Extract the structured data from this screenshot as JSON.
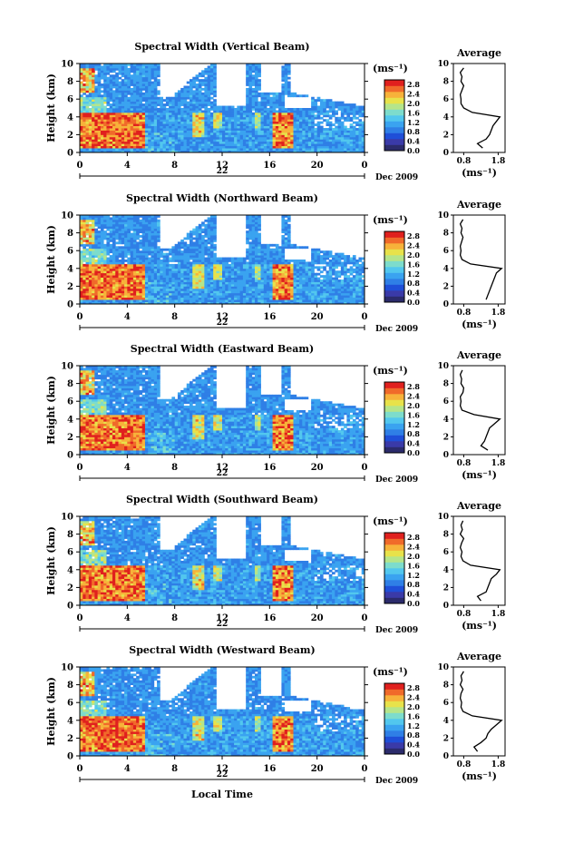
{
  "figure": {
    "xlabel": "Local Time",
    "date_label": "Dec 2009",
    "day_label": "22"
  },
  "colors": {
    "scale": [
      "#2b2b6b",
      "#3a3aa8",
      "#1f4fd8",
      "#2f7fe6",
      "#3aa3f0",
      "#52c7ee",
      "#7ddccc",
      "#b5e58a",
      "#e8e24a",
      "#f7b23a",
      "#f06a2a",
      "#e0201e"
    ],
    "missing": "#ffffff"
  },
  "chart_data": [
    {
      "type": "heatmap",
      "title": "Spectral Width (Vertical Beam)",
      "ylabel": "Height (km)",
      "x_ticks": [
        "0",
        "4",
        "8",
        "12",
        "16",
        "20",
        "0"
      ],
      "y_ticks": [
        "0",
        "2",
        "4",
        "6",
        "8",
        "10"
      ],
      "xlim": [
        0,
        24
      ],
      "ylim": [
        0,
        10
      ],
      "colorbar": {
        "unit": "(ms⁻¹)",
        "ticks": [
          "0.0",
          "0.4",
          "0.8",
          "1.2",
          "1.6",
          "2.0",
          "2.4",
          "2.8"
        ],
        "range": [
          0,
          3.0
        ]
      },
      "profile": {
        "title": "Average",
        "xlabel": "(ms⁻¹)",
        "x_ticks": [
          "0.8",
          "1.8"
        ],
        "xlim": [
          0.5,
          2.0
        ],
        "y_ticks": [
          "0",
          "2",
          "4",
          "6",
          "8",
          "10"
        ],
        "heights": [
          0.5,
          1.0,
          1.5,
          2.0,
          2.5,
          3.0,
          3.5,
          4.0,
          4.5,
          5.0,
          5.5,
          6.0,
          6.5,
          7.0,
          7.5,
          8.0,
          8.5,
          9.0,
          9.5
        ],
        "values": [
          1.35,
          1.2,
          1.45,
          1.55,
          1.6,
          1.65,
          1.75,
          1.85,
          1.05,
          0.8,
          0.72,
          0.72,
          0.7,
          0.75,
          0.8,
          0.72,
          0.75,
          0.7,
          0.8
        ]
      }
    },
    {
      "type": "heatmap",
      "title": "Spectral Width (Northward Beam)",
      "ylabel": "Height (km)",
      "x_ticks": [
        "0",
        "4",
        "8",
        "12",
        "16",
        "20",
        "0"
      ],
      "y_ticks": [
        "0",
        "2",
        "4",
        "6",
        "8",
        "10"
      ],
      "xlim": [
        0,
        24
      ],
      "ylim": [
        0,
        10
      ],
      "colorbar": {
        "unit": "(ms⁻¹)",
        "ticks": [
          "0.0",
          "0.4",
          "0.8",
          "1.2",
          "1.6",
          "2.0",
          "2.4",
          "2.8"
        ],
        "range": [
          0,
          3.0
        ]
      },
      "profile": {
        "title": "Average",
        "xlabel": "(ms⁻¹)",
        "x_ticks": [
          "0.8",
          "1.8"
        ],
        "xlim": [
          0.5,
          2.0
        ],
        "y_ticks": [
          "0",
          "2",
          "4",
          "6",
          "8",
          "10"
        ],
        "heights": [
          0.5,
          1.0,
          1.5,
          2.0,
          2.5,
          3.0,
          3.5,
          4.0,
          4.5,
          5.0,
          5.5,
          6.0,
          6.5,
          7.0,
          7.5,
          8.0,
          8.5,
          9.0,
          9.5
        ],
        "values": [
          1.45,
          1.5,
          1.55,
          1.6,
          1.65,
          1.7,
          1.75,
          1.9,
          1.0,
          0.75,
          0.7,
          0.72,
          0.7,
          0.74,
          0.78,
          0.72,
          0.75,
          0.7,
          0.78
        ]
      }
    },
    {
      "type": "heatmap",
      "title": "Spectral Width (Eastward Beam)",
      "ylabel": "Height (km)",
      "x_ticks": [
        "0",
        "4",
        "8",
        "12",
        "16",
        "20",
        "0"
      ],
      "y_ticks": [
        "0",
        "2",
        "4",
        "6",
        "8",
        "10"
      ],
      "xlim": [
        0,
        24
      ],
      "ylim": [
        0,
        10
      ],
      "colorbar": {
        "unit": "(ms⁻¹)",
        "ticks": [
          "0.0",
          "0.4",
          "0.8",
          "1.2",
          "1.6",
          "2.0",
          "2.4",
          "2.8"
        ],
        "range": [
          0,
          3.0
        ]
      },
      "profile": {
        "title": "Average",
        "xlabel": "(ms⁻¹)",
        "x_ticks": [
          "0.8",
          "1.8"
        ],
        "xlim": [
          0.5,
          2.0
        ],
        "y_ticks": [
          "0",
          "2",
          "4",
          "6",
          "8",
          "10"
        ],
        "heights": [
          0.5,
          1.0,
          1.5,
          2.0,
          2.5,
          3.0,
          3.5,
          4.0,
          4.5,
          5.0,
          5.5,
          6.0,
          6.5,
          7.0,
          7.5,
          8.0,
          8.5,
          9.0,
          9.5
        ],
        "values": [
          1.5,
          1.3,
          1.4,
          1.45,
          1.5,
          1.55,
          1.7,
          1.85,
          1.1,
          0.75,
          0.7,
          0.72,
          0.7,
          0.78,
          0.8,
          0.72,
          0.74,
          0.7,
          0.76
        ]
      }
    },
    {
      "type": "heatmap",
      "title": "Spectral Width (Southward Beam)",
      "ylabel": "Height (km)",
      "x_ticks": [
        "0",
        "4",
        "8",
        "12",
        "16",
        "20",
        "0"
      ],
      "y_ticks": [
        "0",
        "2",
        "4",
        "6",
        "8",
        "10"
      ],
      "xlim": [
        0,
        24
      ],
      "ylim": [
        0,
        10
      ],
      "colorbar": {
        "unit": "(ms⁻¹)",
        "ticks": [
          "0.0",
          "0.4",
          "0.8",
          "1.2",
          "1.6",
          "2.0",
          "2.4",
          "2.8"
        ],
        "range": [
          0,
          3.0
        ]
      },
      "profile": {
        "title": "Average",
        "xlabel": "(ms⁻¹)",
        "x_ticks": [
          "0.8",
          "1.8"
        ],
        "xlim": [
          0.5,
          2.0
        ],
        "y_ticks": [
          "0",
          "2",
          "4",
          "6",
          "8",
          "10"
        ],
        "heights": [
          0.5,
          1.0,
          1.5,
          2.0,
          2.5,
          3.0,
          3.5,
          4.0,
          4.5,
          5.0,
          5.5,
          6.0,
          6.5,
          7.0,
          7.5,
          8.0,
          8.5,
          9.0,
          9.5
        ],
        "values": [
          1.3,
          1.2,
          1.45,
          1.5,
          1.55,
          1.6,
          1.75,
          1.85,
          1.0,
          0.78,
          0.72,
          0.75,
          0.7,
          0.74,
          0.8,
          0.7,
          0.76,
          0.72,
          0.78
        ]
      }
    },
    {
      "type": "heatmap",
      "title": "Spectral Width (Westward Beam)",
      "ylabel": "Height (km)",
      "x_ticks": [
        "0",
        "4",
        "8",
        "12",
        "16",
        "20",
        "0"
      ],
      "y_ticks": [
        "0",
        "2",
        "4",
        "6",
        "8",
        "10"
      ],
      "xlim": [
        0,
        24
      ],
      "ylim": [
        0,
        10
      ],
      "colorbar": {
        "unit": "(ms⁻¹)",
        "ticks": [
          "0.0",
          "0.4",
          "0.8",
          "1.2",
          "1.6",
          "2.0",
          "2.4",
          "2.8"
        ],
        "range": [
          0,
          3.0
        ]
      },
      "profile": {
        "title": "Average",
        "xlabel": "(ms⁻¹)",
        "x_ticks": [
          "0.8",
          "1.8"
        ],
        "xlim": [
          0.5,
          2.0
        ],
        "y_ticks": [
          "0",
          "2",
          "4",
          "6",
          "8",
          "10"
        ],
        "heights": [
          0.5,
          1.0,
          1.5,
          2.0,
          2.5,
          3.0,
          3.5,
          4.0,
          4.5,
          5.0,
          5.5,
          6.0,
          6.5,
          7.0,
          7.5,
          8.0,
          8.5,
          9.0,
          9.5
        ],
        "values": [
          1.2,
          1.1,
          1.3,
          1.45,
          1.5,
          1.6,
          1.75,
          1.9,
          1.05,
          0.78,
          0.72,
          0.74,
          0.7,
          0.72,
          0.78,
          0.7,
          0.75,
          0.72,
          0.8
        ]
      }
    }
  ]
}
